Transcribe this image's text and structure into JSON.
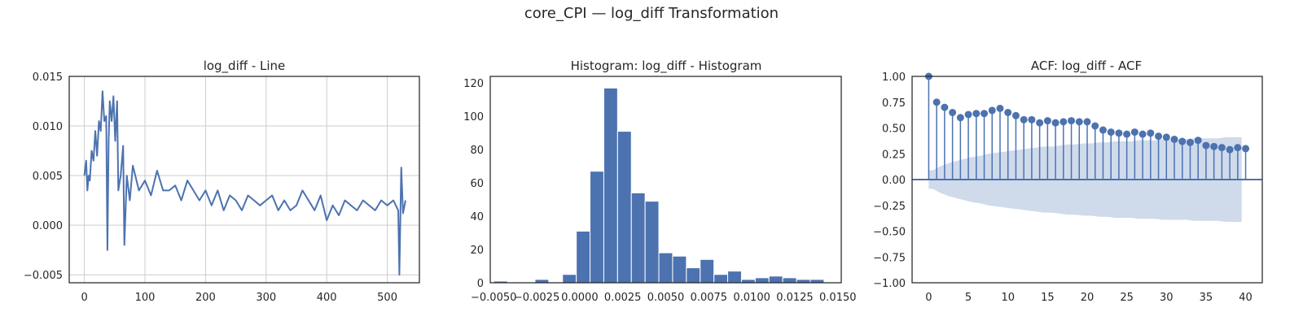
{
  "suptitle": "core_CPI — log_diff Transformation",
  "colors": {
    "series": "#4c72b0",
    "band": "#c7d3e8",
    "grid": "#cccccc",
    "axes": "#262626"
  },
  "chart_data": [
    {
      "type": "line",
      "title": "log_diff - Line",
      "xlabel": "",
      "ylabel": "",
      "xlim": [
        -25,
        553
      ],
      "ylim": [
        -0.0058,
        0.015
      ],
      "xticks": [
        0,
        100,
        200,
        300,
        400,
        500
      ],
      "xtick_labels": [
        "0",
        "100",
        "200",
        "300",
        "400",
        "500"
      ],
      "yticks": [
        -0.005,
        0.0,
        0.005,
        0.01,
        0.015
      ],
      "ytick_labels": [
        "−0.005",
        "0.000",
        "0.005",
        "0.010",
        "0.015"
      ],
      "grid": true,
      "series": [
        {
          "x": [
            0,
            3,
            5,
            7,
            9,
            12,
            15,
            18,
            21,
            24,
            27,
            30,
            33,
            36,
            38,
            40,
            42,
            45,
            48,
            51,
            54,
            56,
            60,
            64,
            66,
            70,
            75,
            80,
            90,
            100,
            110,
            120,
            130,
            140,
            150,
            160,
            170,
            180,
            190,
            200,
            210,
            220,
            230,
            240,
            250,
            260,
            270,
            280,
            290,
            300,
            310,
            320,
            330,
            340,
            350,
            360,
            370,
            380,
            390,
            400,
            410,
            420,
            430,
            440,
            450,
            460,
            470,
            480,
            490,
            500,
            510,
            518,
            520,
            523,
            526,
            530
          ],
          "y": [
            0.005,
            0.0065,
            0.0035,
            0.005,
            0.0045,
            0.0075,
            0.0065,
            0.0095,
            0.007,
            0.0105,
            0.0095,
            0.0135,
            0.0105,
            0.011,
            -0.0025,
            0.0085,
            0.0125,
            0.0105,
            0.013,
            0.0085,
            0.0125,
            0.0035,
            0.005,
            0.008,
            -0.002,
            0.005,
            0.0025,
            0.006,
            0.0035,
            0.0045,
            0.003,
            0.0055,
            0.0035,
            0.0035,
            0.004,
            0.0025,
            0.0045,
            0.0035,
            0.0025,
            0.0035,
            0.002,
            0.0035,
            0.0015,
            0.003,
            0.0025,
            0.0015,
            0.003,
            0.0025,
            0.002,
            0.0025,
            0.003,
            0.0015,
            0.0025,
            0.0015,
            0.002,
            0.0035,
            0.0025,
            0.0015,
            0.003,
            0.0005,
            0.002,
            0.001,
            0.0025,
            0.002,
            0.0015,
            0.0025,
            0.002,
            0.0015,
            0.0025,
            0.002,
            0.0025,
            0.0015,
            -0.005,
            0.0058,
            0.0012,
            0.0025
          ]
        }
      ]
    },
    {
      "type": "bar",
      "title": "Histogram: log_diff - Histogram",
      "xlabel": "",
      "ylabel": "",
      "xlim": [
        -0.0052,
        0.0152
      ],
      "ylim": [
        0,
        124
      ],
      "xticks": [
        -0.005,
        -0.0025,
        0.0,
        0.0025,
        0.005,
        0.0075,
        0.01,
        0.0125,
        0.015
      ],
      "xtick_labels": [
        "−0.0050",
        "−0.0025",
        "0.0000",
        "0.0025",
        "0.0050",
        "0.0075",
        "0.0100",
        "0.0125",
        "0.0150"
      ],
      "yticks": [
        0,
        20,
        40,
        60,
        80,
        100,
        120
      ],
      "ytick_labels": [
        "0",
        "20",
        "40",
        "60",
        "80",
        "100",
        "120"
      ],
      "grid": false,
      "bin_edges": [
        -0.005,
        -0.0042,
        -0.0034,
        -0.0026,
        -0.0018,
        -0.001,
        -0.0002,
        0.0006,
        0.0014,
        0.0022,
        0.003,
        0.0038,
        0.0046,
        0.0054,
        0.0062,
        0.007,
        0.0078,
        0.0086,
        0.0094,
        0.0102,
        0.011,
        0.0118,
        0.0126,
        0.0134,
        0.0142
      ],
      "counts": [
        1,
        0,
        0,
        2,
        0,
        5,
        31,
        67,
        117,
        91,
        54,
        49,
        18,
        16,
        9,
        14,
        5,
        7,
        2,
        3,
        4,
        3,
        2,
        2
      ]
    },
    {
      "type": "scatter",
      "title": "ACF: log_diff - ACF",
      "xlabel": "",
      "ylabel": "",
      "xlim": [
        -2.1,
        42.1
      ],
      "ylim": [
        -1.0,
        1.0
      ],
      "xticks": [
        0,
        5,
        10,
        15,
        20,
        25,
        30,
        35,
        40
      ],
      "xtick_labels": [
        "0",
        "5",
        "10",
        "15",
        "20",
        "25",
        "30",
        "35",
        "40"
      ],
      "yticks": [
        -1.0,
        -0.75,
        -0.5,
        -0.25,
        0.0,
        0.25,
        0.5,
        0.75,
        1.0
      ],
      "ytick_labels": [
        "−1.00",
        "−0.75",
        "−0.50",
        "−0.25",
        "0.00",
        "0.25",
        "0.50",
        "0.75",
        "1.00"
      ],
      "grid": false,
      "lags": [
        0,
        1,
        2,
        3,
        4,
        5,
        6,
        7,
        8,
        9,
        10,
        11,
        12,
        13,
        14,
        15,
        16,
        17,
        18,
        19,
        20,
        21,
        22,
        23,
        24,
        25,
        26,
        27,
        28,
        29,
        30,
        31,
        32,
        33,
        34,
        35,
        36,
        37,
        38,
        39,
        40
      ],
      "acf": [
        1.0,
        0.75,
        0.7,
        0.65,
        0.6,
        0.63,
        0.64,
        0.64,
        0.67,
        0.69,
        0.65,
        0.62,
        0.58,
        0.58,
        0.55,
        0.57,
        0.55,
        0.56,
        0.57,
        0.56,
        0.56,
        0.52,
        0.48,
        0.46,
        0.45,
        0.44,
        0.46,
        0.44,
        0.45,
        0.42,
        0.41,
        0.39,
        0.37,
        0.36,
        0.38,
        0.33,
        0.32,
        0.31,
        0.29,
        0.31,
        0.3
      ],
      "confint_upper": [
        0.09,
        0.09,
        0.13,
        0.16,
        0.18,
        0.2,
        0.22,
        0.23,
        0.25,
        0.26,
        0.27,
        0.28,
        0.29,
        0.3,
        0.31,
        0.32,
        0.32,
        0.33,
        0.34,
        0.34,
        0.35,
        0.35,
        0.36,
        0.36,
        0.37,
        0.37,
        0.37,
        0.38,
        0.38,
        0.38,
        0.39,
        0.39,
        0.39,
        0.39,
        0.4,
        0.4,
        0.4,
        0.4,
        0.41,
        0.41,
        0.41
      ]
    }
  ]
}
